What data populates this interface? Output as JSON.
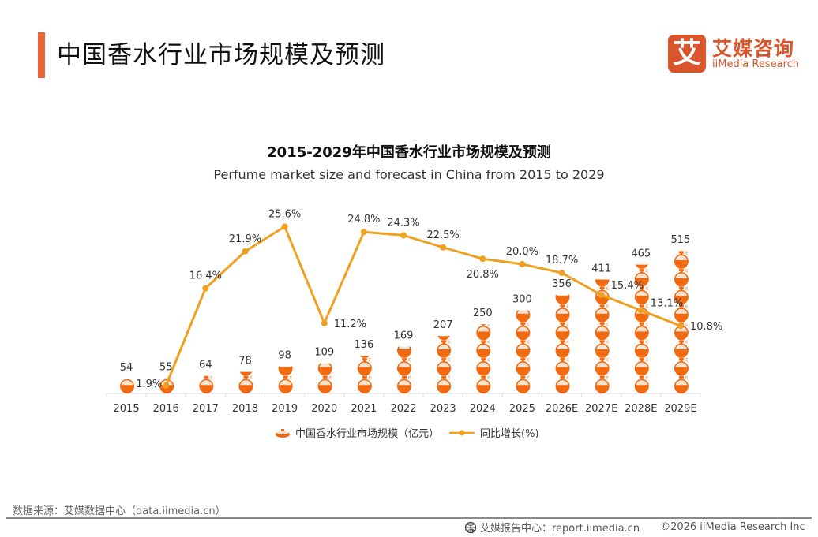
{
  "header": {
    "title": "中国香水行业市场规模及预测",
    "logo_mark": "艾",
    "logo_cn": "艾媒咨询",
    "logo_en": "iiMedia Research"
  },
  "colors": {
    "accent": "#ec6535",
    "logo": "#d9552b",
    "bar_icon": "#f26a10",
    "line": "#f0a020",
    "axis": "#d8dce6"
  },
  "chart_data": {
    "type": "bar",
    "title": "2015-2029年中国香水行业市场规模及预测",
    "subtitle": "Perfume market size and forecast in China from 2015 to 2029",
    "categories": [
      "2015",
      "2016",
      "2017",
      "2018",
      "2019",
      "2020",
      "2021",
      "2022",
      "2023",
      "2024",
      "2025",
      "2026E",
      "2027E",
      "2028E",
      "2029E"
    ],
    "series": [
      {
        "name": "中国香水行业市场规模（亿元）",
        "kind": "pictorial-bar",
        "icon": "perfume-bottle-icon",
        "values": [
          54,
          55,
          64,
          78,
          98,
          109,
          136,
          169,
          207,
          250,
          300,
          356,
          411,
          465,
          515
        ],
        "labels": [
          "54",
          "55",
          "64",
          "78",
          "98",
          "109",
          "136",
          "169",
          "207",
          "250",
          "300",
          "356",
          "411",
          "465",
          "515"
        ]
      },
      {
        "name": "同比增长(%)",
        "kind": "line",
        "axis": "secondary",
        "values": [
          null,
          1.9,
          16.4,
          21.9,
          25.6,
          11.2,
          24.8,
          24.3,
          22.5,
          20.8,
          20.0,
          18.7,
          15.4,
          13.1,
          10.8
        ],
        "labels": [
          null,
          "1.9%",
          "16.4%",
          "21.9%",
          "25.6%",
          "11.2%",
          "24.8%",
          "24.3%",
          "22.5%",
          "20.8%",
          "20.0%",
          "18.7%",
          "15.4%",
          "13.1%",
          "10.8%"
        ]
      }
    ],
    "xlabel": "",
    "ylabel": "",
    "ylim": [
      0,
      550
    ],
    "y2lim": [
      0,
      30
    ],
    "grid": false,
    "legend_position": "bottom"
  },
  "legend": {
    "bar_label": "中国香水行业市场规模（亿元）",
    "line_label": "同比增长(%)"
  },
  "footer": {
    "source": "数据来源：艾媒数据中心（data.iimedia.cn）",
    "report_center": "艾媒报告中心：report.iimedia.cn",
    "copyright": "©2026  iiMedia Research  Inc"
  }
}
